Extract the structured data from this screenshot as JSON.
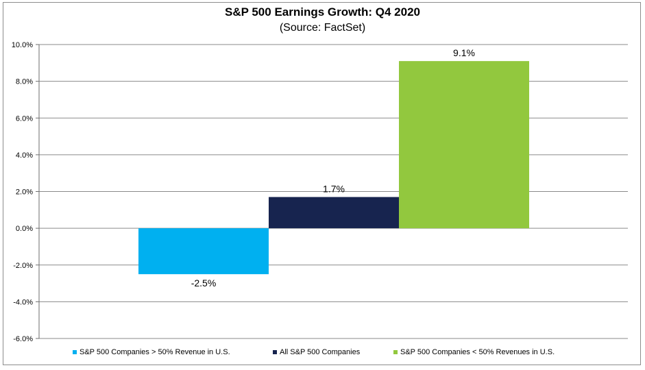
{
  "chart_data": {
    "type": "bar",
    "title": "S&P 500 Earnings Growth: Q4 2020",
    "subtitle": "(Source: FactSet)",
    "xlabel": "",
    "ylabel": "",
    "ylim": [
      -6.0,
      10.0
    ],
    "yticks": [
      "10.0%",
      "8.0%",
      "6.0%",
      "4.0%",
      "2.0%",
      "0.0%",
      "-2.0%",
      "-4.0%",
      "-6.0%"
    ],
    "grid": true,
    "legend_position": "bottom",
    "series": [
      {
        "name": "S&P 500 Companies > 50% Revenue in U.S.",
        "value": -2.5,
        "label": "-2.5%",
        "color": "#00b0f0"
      },
      {
        "name": "All S&P 500 Companies",
        "value": 1.7,
        "label": "1.7%",
        "color": "#17244f"
      },
      {
        "name": "S&P 500 Companies < 50% Revenues in U.S.",
        "value": 9.1,
        "label": "9.1%",
        "color": "#92c83e"
      }
    ]
  }
}
